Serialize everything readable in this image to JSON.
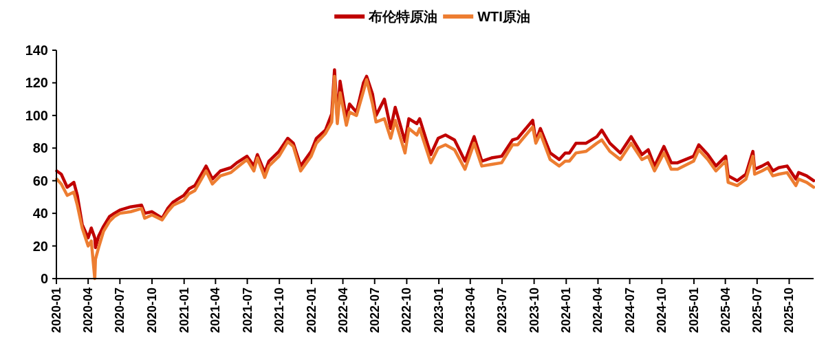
{
  "chart_data": {
    "type": "line",
    "legend": "top",
    "grid": false,
    "marker": "none",
    "line_style": "solid",
    "x": [
      "2020-01-02",
      "2020-01-15",
      "2020-02-01",
      "2020-02-20",
      "2020-03-01",
      "2020-03-15",
      "2020-04-01",
      "2020-04-10",
      "2020-04-20",
      "2020-04-22",
      "2020-05-01",
      "2020-05-15",
      "2020-06-01",
      "2020-06-15",
      "2020-07-01",
      "2020-08-01",
      "2020-09-01",
      "2020-09-10",
      "2020-10-01",
      "2020-10-30",
      "2020-11-15",
      "2020-12-01",
      "2020-12-31",
      "2021-01-15",
      "2021-02-01",
      "2021-02-25",
      "2021-03-05",
      "2021-03-23",
      "2021-04-15",
      "2021-05-15",
      "2021-06-01",
      "2021-06-30",
      "2021-07-20",
      "2021-07-30",
      "2021-08-20",
      "2021-09-01",
      "2021-09-30",
      "2021-10-25",
      "2021-11-10",
      "2021-12-01",
      "2021-12-31",
      "2022-01-15",
      "2022-02-10",
      "2022-02-28",
      "2022-03-08",
      "2022-03-16",
      "2022-03-24",
      "2022-04-11",
      "2022-04-20",
      "2022-05-10",
      "2022-05-30",
      "2022-06-08",
      "2022-06-25",
      "2022-07-05",
      "2022-07-29",
      "2022-08-16",
      "2022-08-29",
      "2022-09-26",
      "2022-10-07",
      "2022-10-30",
      "2022-11-07",
      "2022-12-09",
      "2022-12-30",
      "2023-01-20",
      "2023-02-15",
      "2023-03-17",
      "2023-04-12",
      "2023-05-04",
      "2023-06-01",
      "2023-06-30",
      "2023-07-31",
      "2023-08-15",
      "2023-09-27",
      "2023-10-06",
      "2023-10-19",
      "2023-11-16",
      "2023-12-12",
      "2023-12-29",
      "2024-01-10",
      "2024-01-29",
      "2024-02-27",
      "2024-03-29",
      "2024-04-12",
      "2024-05-05",
      "2024-06-04",
      "2024-07-05",
      "2024-08-05",
      "2024-08-23",
      "2024-09-10",
      "2024-10-07",
      "2024-10-28",
      "2024-11-15",
      "2024-12-31",
      "2025-01-15",
      "2025-02-10",
      "2025-03-05",
      "2025-04-02",
      "2025-04-09",
      "2025-05-05",
      "2025-05-30",
      "2025-06-19",
      "2025-06-24",
      "2025-07-15",
      "2025-08-01",
      "2025-08-15",
      "2025-09-01",
      "2025-09-25",
      "2025-10-20",
      "2025-10-28",
      "2025-11-20",
      "2025-12-10"
    ],
    "series": [
      {
        "name": "布伦特原油",
        "color": "#c00000",
        "values": [
          66,
          64,
          56,
          59,
          51,
          33,
          25,
          31,
          25,
          19,
          26,
          32,
          38,
          40,
          42,
          44,
          45,
          40,
          41,
          37,
          43,
          47,
          51,
          55,
          57,
          66,
          69,
          61,
          66,
          68,
          71,
          75,
          69,
          76,
          65,
          72,
          78,
          86,
          83,
          69,
          78,
          86,
          91,
          101,
          128,
          98,
          121,
          98,
          107,
          102,
          120,
          124,
          113,
          100,
          110,
          92,
          105,
          84,
          98,
          95,
          98,
          76,
          86,
          88,
          85,
          72,
          87,
          72,
          74,
          75,
          85,
          86,
          97,
          84,
          92,
          77,
          73,
          77,
          77,
          83,
          83,
          87,
          91,
          83,
          77,
          87,
          76,
          79,
          69,
          81,
          71,
          71,
          75,
          82,
          76,
          69,
          75,
          63,
          60,
          64,
          78,
          67,
          69,
          71,
          66,
          68,
          69,
          61,
          65,
          63,
          60
        ]
      },
      {
        "name": "WTI原油",
        "color": "#ed7d31",
        "values": [
          61,
          58,
          51,
          53,
          45,
          31,
          20,
          23,
          0,
          12,
          19,
          29,
          35,
          38,
          40,
          41,
          43,
          37,
          39,
          36,
          41,
          45,
          48,
          52,
          54,
          63,
          66,
          58,
          63,
          65,
          68,
          73,
          66,
          74,
          62,
          69,
          75,
          84,
          81,
          66,
          75,
          83,
          89,
          96,
          124,
          95,
          114,
          94,
          102,
          100,
          115,
          122,
          107,
          96,
          98,
          86,
          97,
          77,
          92,
          88,
          92,
          71,
          80,
          82,
          79,
          67,
          83,
          69,
          70,
          71,
          82,
          82,
          93,
          83,
          89,
          73,
          69,
          72,
          72,
          77,
          78,
          83,
          85,
          78,
          73,
          83,
          73,
          75,
          66,
          77,
          67,
          67,
          72,
          79,
          73,
          66,
          72,
          59,
          57,
          61,
          75,
          64,
          66,
          68,
          63,
          64,
          65,
          57,
          61,
          59,
          56
        ]
      }
    ],
    "xlim": [
      "2020-01-01",
      "2025-12-10"
    ],
    "xticks": [
      "2020-01",
      "2020-04",
      "2020-07",
      "2020-10",
      "2021-01",
      "2021-04",
      "2021-07",
      "2021-10",
      "2022-01",
      "2022-04",
      "2022-07",
      "2022-10",
      "2023-01",
      "2023-04",
      "2023-07",
      "2023-10",
      "2024-01",
      "2024-04",
      "2024-07",
      "2024-10",
      "2025-01",
      "2025-04",
      "2025-07",
      "2025-10"
    ],
    "ylim": [
      0,
      140
    ],
    "yticks": [
      0,
      20,
      40,
      60,
      80,
      100,
      120,
      140
    ]
  }
}
